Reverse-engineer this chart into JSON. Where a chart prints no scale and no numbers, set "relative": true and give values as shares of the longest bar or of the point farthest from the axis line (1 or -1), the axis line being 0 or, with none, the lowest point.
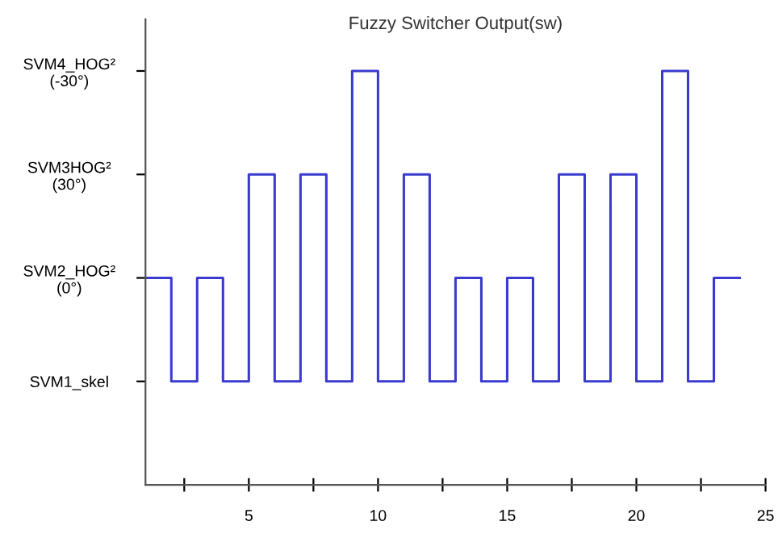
{
  "chart_data": {
    "type": "step",
    "title": "Fuzzy Switcher Output(sw)",
    "relative": true,
    "x": [
      1,
      2,
      3,
      4,
      5,
      6,
      7,
      8,
      9,
      10,
      11,
      12,
      13,
      14,
      15,
      16,
      17,
      18,
      19,
      20,
      21,
      22,
      23,
      24
    ],
    "series": [
      {
        "color": "#3a3ad0",
        "values": [
          0.5,
          0.25,
          0.5,
          0.25,
          0.75,
          0.25,
          0.75,
          0.25,
          1,
          0.25,
          0.75,
          0.25,
          0.5,
          0.25,
          0.5,
          0.25,
          0.75,
          0.25,
          0.75,
          0.25,
          1,
          0.25,
          0.5,
          0.5
        ]
      }
    ],
    "annotations": [
      "SVM4_HOG²\n(-30°)",
      "SVM3HOG²\n(30°)",
      "SVM2_HOG²\n(0°)",
      "SVM1_skel"
    ],
    "xlim": [
      1,
      25
    ],
    "xticks": [
      {
        "value": 2.5,
        "label": null
      },
      5,
      {
        "value": 7.5,
        "label": null
      },
      10,
      {
        "value": 12.5,
        "label": null
      },
      15,
      {
        "value": 17.5,
        "label": null
      },
      20,
      {
        "value": 22.5,
        "label": null
      },
      25
    ],
    "grid": false,
    "legend": false,
    "line_style": "solid",
    "marker": "none"
  }
}
